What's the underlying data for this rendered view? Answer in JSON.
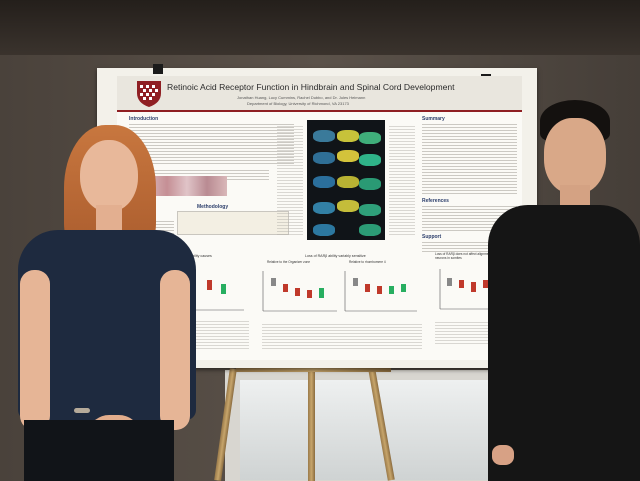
{
  "poster": {
    "title": "Retinoic Acid Receptor Function in Hindbrain and Spinal Cord Development",
    "authors": "Jonathan Huang, Lucy Cummins, Rachel Dubbo, and Dr. Jules Heimann",
    "department": "Department of Biology, University of Richmond, VA 23173",
    "sections": {
      "introduction": "Introduction",
      "methodology": "Methodology",
      "summary": "Summary",
      "references": "References",
      "support": "Support"
    },
    "chart_captions": {
      "left": "Loss of RARβ ability causes",
      "middle": "Loss of RARβ ability variably sensitize",
      "middle_sub_a": "Relative to the Organizer zone",
      "middle_sub_b": "Relative to rhombomere 4",
      "right": "Loss of RARβ does not affect alignment of spinal motor neurons in somites"
    }
  },
  "colors": {
    "poster_accent": "#8f1f23",
    "poster_header": "#e9e6de",
    "person_left_shirt": "#1e2a3f",
    "person_right_shirt": "#151515",
    "wall": "#4f4740"
  }
}
